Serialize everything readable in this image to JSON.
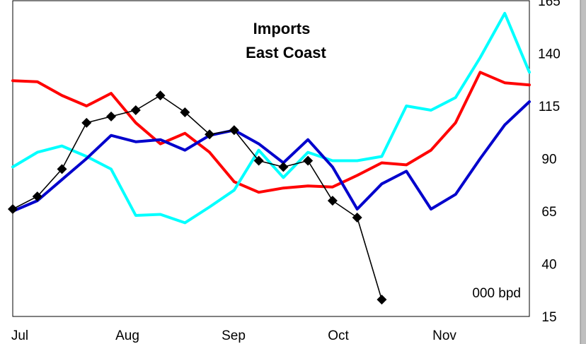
{
  "chart_data": {
    "type": "line",
    "title": "Imports",
    "subtitle": "East Coast",
    "unit_label": "000 bpd",
    "x_tick_labels": [
      "Jul",
      "Aug",
      "Sep",
      "Oct",
      "Nov"
    ],
    "y_axis_position": "right",
    "y_tick_labels": [
      "15",
      "40",
      "65",
      "90",
      "115",
      "140",
      "165"
    ],
    "ylim": [
      15,
      165
    ],
    "xlim": [
      0,
      21
    ],
    "grid": false,
    "legend": "none",
    "series": [
      {
        "color": "#ff0000",
        "marker": "none",
        "x": [
          0,
          1,
          2,
          3,
          4,
          5,
          6,
          7,
          8,
          9,
          10,
          11,
          12,
          13,
          14,
          15,
          16,
          17,
          18,
          19,
          20,
          21
        ],
        "values": [
          127,
          126.5,
          120,
          115,
          121,
          107,
          97,
          102,
          93,
          79,
          74,
          76,
          77,
          76.5,
          82,
          88,
          87,
          94,
          107,
          131,
          126,
          125
        ]
      },
      {
        "color": "#00ffff",
        "marker": "none",
        "x": [
          0,
          1,
          2,
          3,
          4,
          5,
          6,
          7,
          8,
          9,
          10,
          11,
          12,
          13,
          14,
          15,
          16,
          17,
          18,
          19,
          20,
          21
        ],
        "values": [
          86,
          93,
          96,
          91,
          85,
          63,
          63.5,
          59.5,
          67,
          75,
          94,
          81,
          93,
          89,
          89,
          91,
          115,
          113,
          119,
          138,
          159,
          131
        ]
      },
      {
        "color": "#0000cc",
        "marker": "none",
        "x": [
          0,
          1,
          2,
          3,
          4,
          5,
          6,
          7,
          8,
          9,
          10,
          11,
          12,
          13,
          14,
          15,
          16,
          17,
          18,
          19,
          20,
          21
        ],
        "values": [
          65,
          70,
          80,
          90,
          101,
          98,
          99,
          94,
          101,
          103.5,
          97,
          88,
          99,
          86,
          66,
          78,
          84,
          66,
          73,
          90,
          106,
          117
        ]
      },
      {
        "color": "#000000",
        "marker": "diamond",
        "x": [
          0,
          1,
          2,
          3,
          4,
          5,
          6,
          7,
          8,
          9,
          10,
          11,
          12,
          13,
          14,
          15
        ],
        "values": [
          66,
          72,
          85,
          107,
          110,
          113,
          120,
          112,
          101.5,
          103.5,
          89,
          86,
          89,
          70,
          62,
          23
        ]
      }
    ]
  }
}
